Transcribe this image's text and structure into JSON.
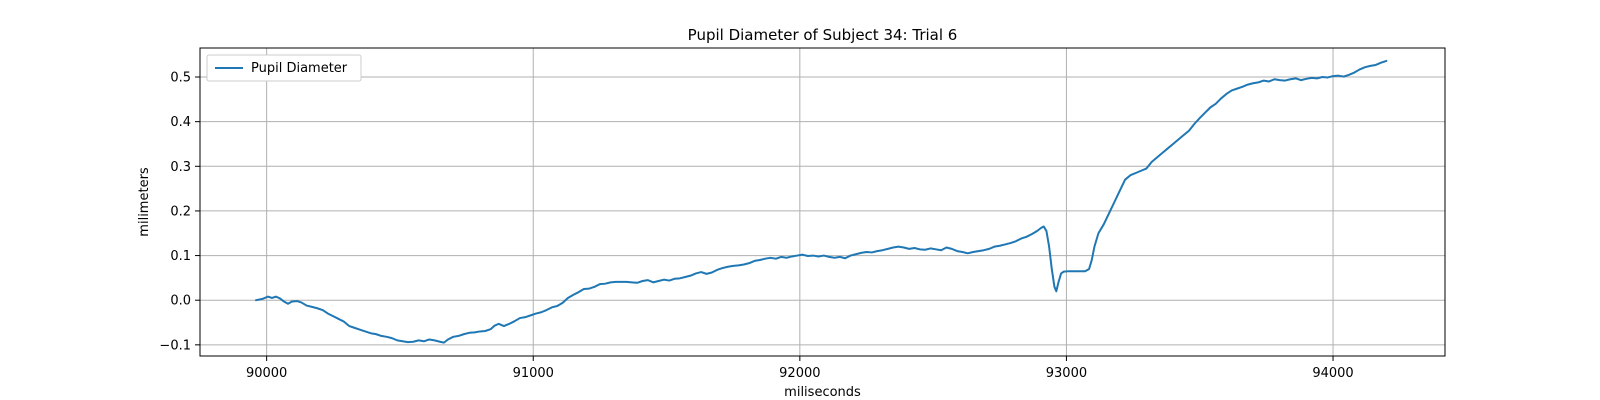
{
  "chart_data": {
    "type": "line",
    "title": "Pupil Diameter of Subject 34: Trial 6",
    "xlabel": "miliseconds",
    "ylabel": "milimeters",
    "xlim": [
      89750,
      94420
    ],
    "ylim": [
      -0.125,
      0.565
    ],
    "xticks": [
      90000,
      91000,
      92000,
      93000,
      94000
    ],
    "yticks": [
      -0.1,
      0.0,
      0.1,
      0.2,
      0.3,
      0.4,
      0.5
    ],
    "ytick_labels": [
      "−0.1",
      "0.0",
      "0.1",
      "0.2",
      "0.3",
      "0.4",
      "0.5"
    ],
    "grid": true,
    "legend_position": "top-left",
    "series": [
      {
        "name": "Pupil Diameter",
        "color": "#1f77b4",
        "points": [
          [
            89960,
            0.0
          ],
          [
            89985,
            0.003
          ],
          [
            90005,
            0.008
          ],
          [
            90020,
            0.005
          ],
          [
            90035,
            0.008
          ],
          [
            90050,
            0.004
          ],
          [
            90065,
            -0.003
          ],
          [
            90080,
            -0.008
          ],
          [
            90095,
            -0.003
          ],
          [
            90115,
            -0.002
          ],
          [
            90130,
            -0.005
          ],
          [
            90150,
            -0.012
          ],
          [
            90170,
            -0.015
          ],
          [
            90190,
            -0.018
          ],
          [
            90210,
            -0.022
          ],
          [
            90230,
            -0.03
          ],
          [
            90250,
            -0.036
          ],
          [
            90270,
            -0.042
          ],
          [
            90290,
            -0.048
          ],
          [
            90310,
            -0.058
          ],
          [
            90330,
            -0.062
          ],
          [
            90350,
            -0.066
          ],
          [
            90370,
            -0.07
          ],
          [
            90390,
            -0.074
          ],
          [
            90410,
            -0.076
          ],
          [
            90430,
            -0.08
          ],
          [
            90450,
            -0.082
          ],
          [
            90470,
            -0.085
          ],
          [
            90490,
            -0.09
          ],
          [
            90510,
            -0.092
          ],
          [
            90530,
            -0.094
          ],
          [
            90550,
            -0.093
          ],
          [
            90570,
            -0.09
          ],
          [
            90590,
            -0.092
          ],
          [
            90610,
            -0.088
          ],
          [
            90630,
            -0.09
          ],
          [
            90650,
            -0.093
          ],
          [
            90665,
            -0.095
          ],
          [
            90680,
            -0.088
          ],
          [
            90700,
            -0.082
          ],
          [
            90720,
            -0.08
          ],
          [
            90740,
            -0.076
          ],
          [
            90760,
            -0.073
          ],
          [
            90780,
            -0.072
          ],
          [
            90800,
            -0.07
          ],
          [
            90820,
            -0.069
          ],
          [
            90840,
            -0.065
          ],
          [
            90855,
            -0.057
          ],
          [
            90870,
            -0.053
          ],
          [
            90890,
            -0.058
          ],
          [
            90910,
            -0.053
          ],
          [
            90930,
            -0.047
          ],
          [
            90950,
            -0.04
          ],
          [
            90970,
            -0.038
          ],
          [
            90990,
            -0.034
          ],
          [
            91010,
            -0.03
          ],
          [
            91030,
            -0.027
          ],
          [
            91050,
            -0.022
          ],
          [
            91070,
            -0.016
          ],
          [
            91090,
            -0.013
          ],
          [
            91110,
            -0.006
          ],
          [
            91130,
            0.005
          ],
          [
            91150,
            0.012
          ],
          [
            91170,
            0.018
          ],
          [
            91190,
            0.025
          ],
          [
            91210,
            0.026
          ],
          [
            91230,
            0.03
          ],
          [
            91250,
            0.036
          ],
          [
            91270,
            0.037
          ],
          [
            91290,
            0.04
          ],
          [
            91310,
            0.041
          ],
          [
            91330,
            0.041
          ],
          [
            91350,
            0.041
          ],
          [
            91370,
            0.04
          ],
          [
            91390,
            0.039
          ],
          [
            91410,
            0.043
          ],
          [
            91430,
            0.045
          ],
          [
            91450,
            0.04
          ],
          [
            91470,
            0.043
          ],
          [
            91490,
            0.046
          ],
          [
            91510,
            0.044
          ],
          [
            91530,
            0.048
          ],
          [
            91550,
            0.049
          ],
          [
            91570,
            0.052
          ],
          [
            91590,
            0.055
          ],
          [
            91610,
            0.06
          ],
          [
            91630,
            0.063
          ],
          [
            91650,
            0.059
          ],
          [
            91670,
            0.062
          ],
          [
            91690,
            0.068
          ],
          [
            91710,
            0.072
          ],
          [
            91730,
            0.075
          ],
          [
            91750,
            0.077
          ],
          [
            91770,
            0.078
          ],
          [
            91790,
            0.08
          ],
          [
            91810,
            0.083
          ],
          [
            91830,
            0.088
          ],
          [
            91850,
            0.09
          ],
          [
            91870,
            0.093
          ],
          [
            91890,
            0.095
          ],
          [
            91910,
            0.093
          ],
          [
            91930,
            0.097
          ],
          [
            91950,
            0.095
          ],
          [
            91970,
            0.098
          ],
          [
            91990,
            0.1
          ],
          [
            92010,
            0.102
          ],
          [
            92030,
            0.099
          ],
          [
            92050,
            0.1
          ],
          [
            92070,
            0.098
          ],
          [
            92090,
            0.1
          ],
          [
            92110,
            0.097
          ],
          [
            92130,
            0.095
          ],
          [
            92150,
            0.097
          ],
          [
            92170,
            0.094
          ],
          [
            92190,
            0.1
          ],
          [
            92210,
            0.103
          ],
          [
            92230,
            0.106
          ],
          [
            92250,
            0.108
          ],
          [
            92270,
            0.107
          ],
          [
            92290,
            0.11
          ],
          [
            92310,
            0.112
          ],
          [
            92330,
            0.115
          ],
          [
            92350,
            0.118
          ],
          [
            92370,
            0.12
          ],
          [
            92390,
            0.118
          ],
          [
            92410,
            0.115
          ],
          [
            92430,
            0.117
          ],
          [
            92450,
            0.114
          ],
          [
            92470,
            0.113
          ],
          [
            92490,
            0.116
          ],
          [
            92510,
            0.114
          ],
          [
            92530,
            0.112
          ],
          [
            92550,
            0.118
          ],
          [
            92570,
            0.115
          ],
          [
            92590,
            0.11
          ],
          [
            92610,
            0.108
          ],
          [
            92630,
            0.105
          ],
          [
            92650,
            0.108
          ],
          [
            92670,
            0.11
          ],
          [
            92690,
            0.112
          ],
          [
            92710,
            0.115
          ],
          [
            92730,
            0.12
          ],
          [
            92750,
            0.122
          ],
          [
            92770,
            0.125
          ],
          [
            92790,
            0.128
          ],
          [
            92810,
            0.132
          ],
          [
            92830,
            0.138
          ],
          [
            92850,
            0.142
          ],
          [
            92870,
            0.148
          ],
          [
            92890,
            0.155
          ],
          [
            92905,
            0.162
          ],
          [
            92915,
            0.165
          ],
          [
            92925,
            0.155
          ],
          [
            92935,
            0.12
          ],
          [
            92945,
            0.07
          ],
          [
            92955,
            0.03
          ],
          [
            92962,
            0.02
          ],
          [
            92970,
            0.04
          ],
          [
            92980,
            0.06
          ],
          [
            92990,
            0.064
          ],
          [
            93010,
            0.065
          ],
          [
            93030,
            0.065
          ],
          [
            93050,
            0.065
          ],
          [
            93070,
            0.065
          ],
          [
            93085,
            0.07
          ],
          [
            93095,
            0.09
          ],
          [
            93105,
            0.12
          ],
          [
            93120,
            0.15
          ],
          [
            93140,
            0.17
          ],
          [
            93160,
            0.195
          ],
          [
            93180,
            0.22
          ],
          [
            93200,
            0.245
          ],
          [
            93220,
            0.27
          ],
          [
            93240,
            0.28
          ],
          [
            93260,
            0.285
          ],
          [
            93280,
            0.29
          ],
          [
            93300,
            0.295
          ],
          [
            93320,
            0.31
          ],
          [
            93340,
            0.32
          ],
          [
            93360,
            0.33
          ],
          [
            93380,
            0.34
          ],
          [
            93400,
            0.35
          ],
          [
            93420,
            0.36
          ],
          [
            93440,
            0.37
          ],
          [
            93460,
            0.38
          ],
          [
            93480,
            0.395
          ],
          [
            93500,
            0.408
          ],
          [
            93520,
            0.42
          ],
          [
            93540,
            0.432
          ],
          [
            93560,
            0.44
          ],
          [
            93580,
            0.452
          ],
          [
            93600,
            0.462
          ],
          [
            93620,
            0.47
          ],
          [
            93640,
            0.474
          ],
          [
            93660,
            0.478
          ],
          [
            93680,
            0.483
          ],
          [
            93700,
            0.486
          ],
          [
            93720,
            0.488
          ],
          [
            93740,
            0.492
          ],
          [
            93760,
            0.49
          ],
          [
            93780,
            0.495
          ],
          [
            93800,
            0.493
          ],
          [
            93820,
            0.492
          ],
          [
            93840,
            0.495
          ],
          [
            93860,
            0.497
          ],
          [
            93880,
            0.493
          ],
          [
            93900,
            0.496
          ],
          [
            93920,
            0.498
          ],
          [
            93940,
            0.497
          ],
          [
            93960,
            0.5
          ],
          [
            93980,
            0.499
          ],
          [
            94000,
            0.502
          ],
          [
            94020,
            0.503
          ],
          [
            94040,
            0.501
          ],
          [
            94060,
            0.505
          ],
          [
            94080,
            0.51
          ],
          [
            94100,
            0.517
          ],
          [
            94120,
            0.522
          ],
          [
            94140,
            0.525
          ],
          [
            94160,
            0.527
          ],
          [
            94180,
            0.532
          ],
          [
            94200,
            0.536
          ]
        ]
      }
    ]
  }
}
